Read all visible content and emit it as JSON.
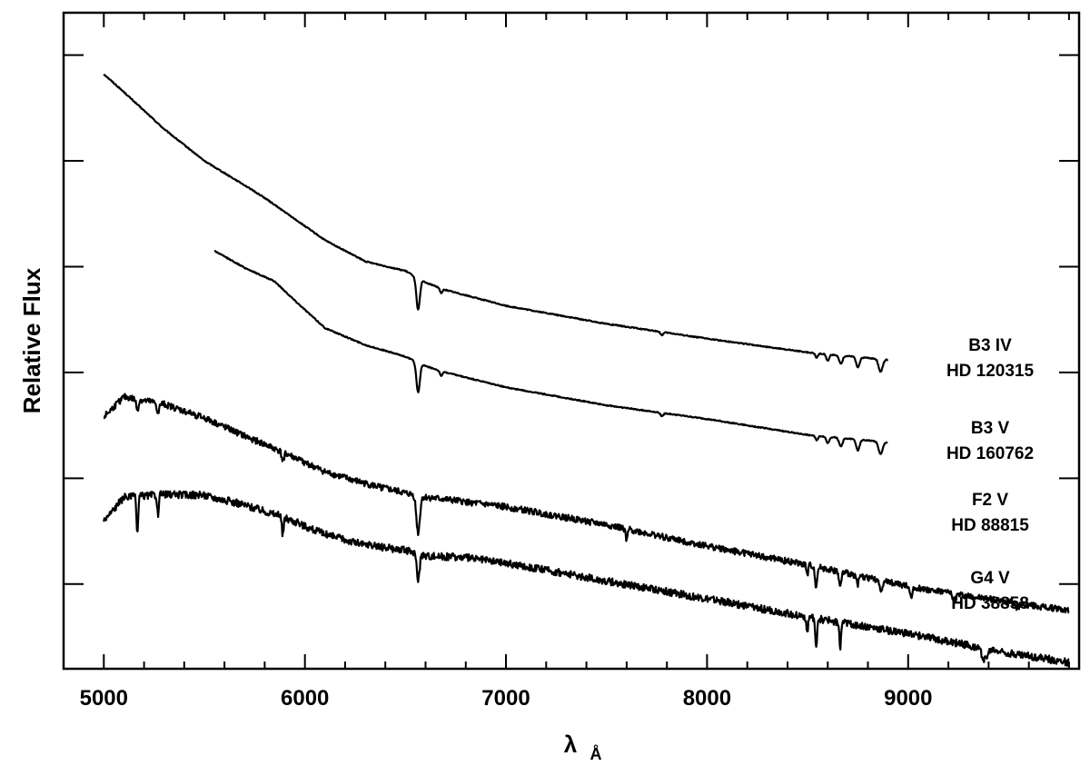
{
  "chart_data": {
    "type": "line",
    "title": "",
    "xlabel": "λ",
    "xlabel_unit": "Å",
    "ylabel": "Relative Flux",
    "xlim": [
      4800,
      9850
    ],
    "ylim": [
      0,
      6.2
    ],
    "x_ticks": [
      5000,
      6000,
      7000,
      8000,
      9000
    ],
    "x_tick_labels": [
      "5000",
      "6000",
      "7000",
      "8000",
      "9000"
    ],
    "x_minor_step": 200,
    "y_ticks": [
      0.8,
      1.8,
      2.8,
      3.8,
      4.8,
      5.8
    ],
    "grid": false,
    "series": [
      {
        "label_line1": "B3 IV",
        "label_line2": "HD 120315",
        "x": [
          5000,
          5100,
          5300,
          5500,
          5700,
          5800,
          5950,
          6100,
          6300,
          6500,
          6600,
          6700,
          7000,
          7500,
          8000,
          8500,
          8900
        ],
        "y": [
          5.62,
          5.45,
          5.1,
          4.8,
          4.57,
          4.45,
          4.25,
          4.05,
          3.85,
          3.76,
          3.65,
          3.58,
          3.43,
          3.26,
          3.12,
          2.99,
          2.92
        ],
        "features": [
          [
            6563,
            0.3,
            12
          ],
          [
            6678,
            0.05,
            8
          ],
          [
            7775,
            0.03,
            10
          ],
          [
            8545,
            0.04,
            10
          ],
          [
            8600,
            0.06,
            10
          ],
          [
            8665,
            0.08,
            12
          ],
          [
            8750,
            0.1,
            12
          ],
          [
            8863,
            0.12,
            14
          ]
        ],
        "noise": 0.005
      },
      {
        "label_line1": "B3 V",
        "label_line2": "HD 160762",
        "x": [
          5550,
          5700,
          5850,
          5950,
          6100,
          6300,
          6500,
          6600,
          6700,
          7000,
          7500,
          8000,
          8500,
          8900
        ],
        "y": [
          3.95,
          3.79,
          3.66,
          3.48,
          3.22,
          3.06,
          2.95,
          2.86,
          2.8,
          2.66,
          2.49,
          2.36,
          2.21,
          2.14
        ],
        "features": [
          [
            6563,
            0.28,
            12
          ],
          [
            6678,
            0.05,
            8
          ],
          [
            7775,
            0.03,
            10
          ],
          [
            8545,
            0.04,
            10
          ],
          [
            8600,
            0.06,
            10
          ],
          [
            8665,
            0.08,
            12
          ],
          [
            8750,
            0.1,
            12
          ],
          [
            8863,
            0.12,
            14
          ]
        ],
        "noise": 0.005
      },
      {
        "label_line1": "F2 V",
        "label_line2": "HD 88815",
        "x": [
          5000,
          5100,
          5300,
          5500,
          5700,
          5900,
          6100,
          6300,
          6500,
          6600,
          6700,
          7000,
          7500,
          8000,
          8500,
          9000,
          9500,
          9800
        ],
        "y": [
          2.38,
          2.57,
          2.5,
          2.37,
          2.2,
          2.04,
          1.86,
          1.75,
          1.66,
          1.62,
          1.6,
          1.53,
          1.36,
          1.16,
          0.98,
          0.78,
          0.63,
          0.55
        ],
        "features": [
          [
            5167,
            0.1,
            8
          ],
          [
            5270,
            0.1,
            8
          ],
          [
            5890,
            0.08,
            8
          ],
          [
            6563,
            0.35,
            12
          ],
          [
            7600,
            0.12,
            6
          ],
          [
            8498,
            0.1,
            6
          ],
          [
            8542,
            0.18,
            8
          ],
          [
            8662,
            0.15,
            8
          ],
          [
            8750,
            0.08,
            8
          ],
          [
            8863,
            0.1,
            10
          ],
          [
            9015,
            0.08,
            10
          ],
          [
            9230,
            0.08,
            10
          ],
          [
            9546,
            0.06,
            10
          ]
        ],
        "noise": 0.03
      },
      {
        "label_line1": "G4 V",
        "label_line2": "HD 38858",
        "x": [
          5000,
          5100,
          5300,
          5500,
          5700,
          5900,
          6100,
          6300,
          6500,
          6600,
          6800,
          7000,
          7500,
          8000,
          8500,
          9000,
          9500,
          9800
        ],
        "y": [
          1.4,
          1.62,
          1.65,
          1.64,
          1.55,
          1.43,
          1.27,
          1.17,
          1.12,
          1.07,
          1.05,
          1.0,
          0.83,
          0.66,
          0.49,
          0.33,
          0.15,
          0.06
        ],
        "features": [
          [
            5167,
            0.35,
            6
          ],
          [
            5270,
            0.2,
            6
          ],
          [
            5890,
            0.18,
            6
          ],
          [
            6563,
            0.25,
            10
          ],
          [
            8498,
            0.15,
            6
          ],
          [
            8542,
            0.3,
            6
          ],
          [
            8662,
            0.25,
            6
          ],
          [
            9380,
            0.1,
            20
          ]
        ],
        "noise": 0.035
      }
    ]
  }
}
